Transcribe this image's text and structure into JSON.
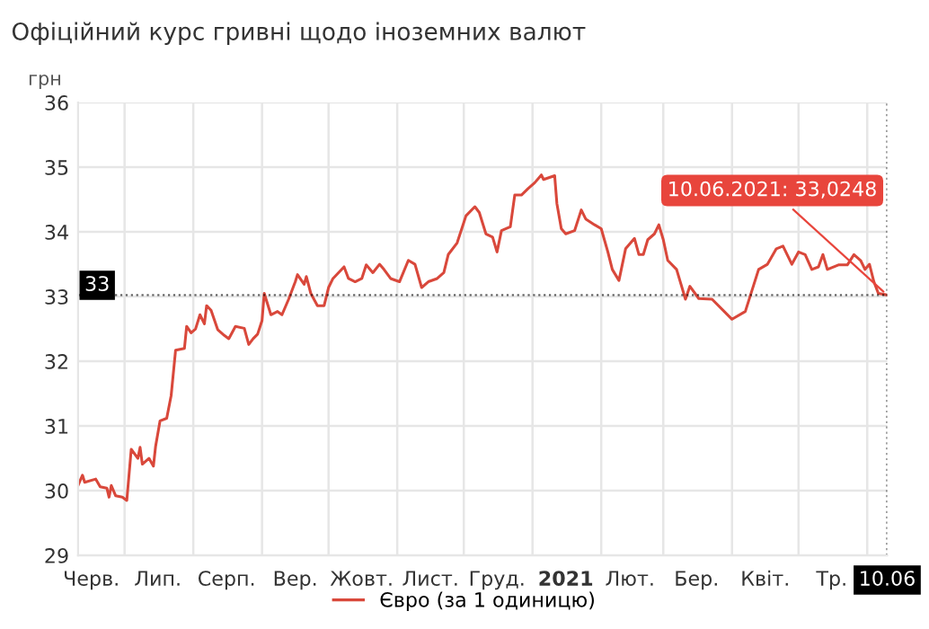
{
  "chart_data": {
    "type": "line",
    "title": "Офіційний курс гривні щодо іноземних валют",
    "ylabel": "грн",
    "x": [
      "2020-06-10",
      "2020-06-12",
      "2020-06-13",
      "2020-06-18",
      "2020-06-20",
      "2020-06-23",
      "2020-06-24",
      "2020-06-25",
      "2020-06-27",
      "2020-06-30",
      "2020-07-02",
      "2020-07-04",
      "2020-07-07",
      "2020-07-08",
      "2020-07-09",
      "2020-07-12",
      "2020-07-14",
      "2020-07-15",
      "2020-07-17",
      "2020-07-20",
      "2020-07-22",
      "2020-07-24",
      "2020-07-28",
      "2020-07-29",
      "2020-07-31",
      "2020-08-02",
      "2020-08-04",
      "2020-08-06",
      "2020-08-07",
      "2020-08-09",
      "2020-08-12",
      "2020-08-15",
      "2020-08-17",
      "2020-08-20",
      "2020-08-24",
      "2020-08-26",
      "2020-08-28",
      "2020-08-30",
      "2020-09-01",
      "2020-09-02",
      "2020-09-05",
      "2020-09-08",
      "2020-09-10",
      "2020-09-13",
      "2020-09-16",
      "2020-09-17",
      "2020-09-20",
      "2020-09-21",
      "2020-09-23",
      "2020-09-26",
      "2020-09-29",
      "2020-10-01",
      "2020-10-03",
      "2020-10-08",
      "2020-10-10",
      "2020-10-13",
      "2020-10-16",
      "2020-10-18",
      "2020-10-21",
      "2020-10-24",
      "2020-10-26",
      "2020-10-29",
      "2020-11-02",
      "2020-11-06",
      "2020-11-09",
      "2020-11-12",
      "2020-11-15",
      "2020-11-19",
      "2020-11-22",
      "2020-11-24",
      "2020-11-28",
      "2020-12-02",
      "2020-12-06",
      "2020-12-08",
      "2020-12-11",
      "2020-12-14",
      "2020-12-16",
      "2020-12-18",
      "2020-12-22",
      "2020-12-24",
      "2020-12-27",
      "2020-12-30",
      "2021-01-02",
      "2021-01-05",
      "2021-01-06",
      "2021-01-11",
      "2021-01-12",
      "2021-01-14",
      "2021-01-16",
      "2021-01-20",
      "2021-01-23",
      "2021-01-25",
      "2021-01-29",
      "2021-02-01",
      "2021-02-04",
      "2021-02-06",
      "2021-02-09",
      "2021-02-12",
      "2021-02-16",
      "2021-02-18",
      "2021-02-20",
      "2021-02-22",
      "2021-02-25",
      "2021-02-27",
      "2021-03-01",
      "2021-03-03",
      "2021-03-07",
      "2021-03-09",
      "2021-03-11",
      "2021-03-13",
      "2021-03-17",
      "2021-03-23",
      "2021-04-01",
      "2021-04-07",
      "2021-04-13",
      "2021-04-17",
      "2021-04-21",
      "2021-04-24",
      "2021-04-28",
      "2021-05-01",
      "2021-05-04",
      "2021-05-07",
      "2021-05-10",
      "2021-05-12",
      "2021-05-14",
      "2021-05-19",
      "2021-05-23",
      "2021-05-26",
      "2021-05-29",
      "2021-05-31",
      "2021-06-02",
      "2021-06-04",
      "2021-06-06",
      "2021-06-10"
    ],
    "series": [
      {
        "name": "Євро (за 1 одиницю)",
        "color": "#d9483b",
        "values": [
          30.08,
          30.24,
          30.13,
          30.18,
          30.06,
          30.04,
          29.9,
          30.08,
          29.92,
          29.9,
          29.85,
          30.64,
          30.5,
          30.67,
          30.41,
          30.5,
          30.38,
          30.69,
          31.08,
          31.12,
          31.47,
          32.17,
          32.2,
          32.54,
          32.44,
          32.5,
          32.72,
          32.58,
          32.86,
          32.79,
          32.49,
          32.4,
          32.35,
          32.54,
          32.51,
          32.26,
          32.35,
          32.42,
          32.63,
          33.05,
          32.72,
          32.77,
          32.72,
          32.96,
          33.23,
          33.34,
          33.19,
          33.31,
          33.05,
          32.86,
          32.86,
          33.14,
          33.28,
          33.46,
          33.28,
          33.23,
          33.28,
          33.49,
          33.37,
          33.5,
          33.42,
          33.28,
          33.23,
          33.56,
          33.5,
          33.14,
          33.23,
          33.28,
          33.37,
          33.65,
          33.83,
          34.25,
          34.39,
          34.3,
          33.97,
          33.92,
          33.69,
          34.02,
          34.08,
          34.57,
          34.57,
          34.67,
          34.76,
          34.88,
          34.81,
          34.87,
          34.44,
          34.05,
          33.97,
          34.02,
          34.34,
          34.2,
          34.11,
          34.05,
          33.69,
          33.42,
          33.25,
          33.74,
          33.9,
          33.65,
          33.65,
          33.88,
          33.97,
          34.11,
          33.88,
          33.56,
          33.42,
          33.19,
          32.96,
          33.16,
          32.97,
          32.96,
          32.65,
          32.77,
          33.42,
          33.5,
          33.74,
          33.78,
          33.5,
          33.69,
          33.65,
          33.42,
          33.46,
          33.65,
          33.42,
          33.49,
          33.49,
          33.65,
          33.56,
          33.42,
          33.5,
          33.23,
          33.05,
          33.0248
        ]
      }
    ],
    "xlim": [
      "2020-06-10",
      "2021-06-10"
    ],
    "xticks": [
      {
        "value": "2020-06-16",
        "label": "Черв."
      },
      {
        "value": "2020-07-01",
        "label": null
      },
      {
        "value": "2020-07-16",
        "label": "Лип."
      },
      {
        "value": "2020-08-01",
        "label": null
      },
      {
        "value": "2020-08-16",
        "label": "Серп."
      },
      {
        "value": "2020-09-01",
        "label": null
      },
      {
        "value": "2020-09-16",
        "label": "Вер."
      },
      {
        "value": "2020-10-01",
        "label": null
      },
      {
        "value": "2020-10-16",
        "label": "Жовт."
      },
      {
        "value": "2020-11-01",
        "label": null
      },
      {
        "value": "2020-11-16",
        "label": "Лист."
      },
      {
        "value": "2020-12-01",
        "label": null
      },
      {
        "value": "2020-12-16",
        "label": "Груд."
      },
      {
        "value": "2021-01-01",
        "label": null
      },
      {
        "value": "2021-01-16",
        "label": "2021"
      },
      {
        "value": "2021-02-01",
        "label": null
      },
      {
        "value": "2021-02-14",
        "label": "Лют."
      },
      {
        "value": "2021-03-01",
        "label": null
      },
      {
        "value": "2021-03-16",
        "label": "Бер."
      },
      {
        "value": "2021-04-01",
        "label": null
      },
      {
        "value": "2021-04-16",
        "label": "Квіт."
      },
      {
        "value": "2021-05-01",
        "label": null
      },
      {
        "value": "2021-05-16",
        "label": "Тр."
      },
      {
        "value": "2021-06-01",
        "label": null
      },
      {
        "value": "2021-06-10",
        "label": "10.06"
      }
    ],
    "ylim": [
      29,
      36
    ],
    "yticks": [
      29,
      30,
      31,
      32,
      33,
      34,
      35,
      36
    ],
    "grid": true,
    "legend": "bottom",
    "ref_lines": [
      {
        "axis": "y",
        "value": 33.0248,
        "label": "33",
        "color": "#000000",
        "line_style": "dotted"
      },
      {
        "axis": "x",
        "value": "2021-06-10",
        "color": "#000000",
        "line_style": "dotted"
      }
    ],
    "annotations": [
      {
        "text": "10.06.2021: 33,0248",
        "x": "2021-06-10",
        "y": 33.0248
      }
    ]
  }
}
